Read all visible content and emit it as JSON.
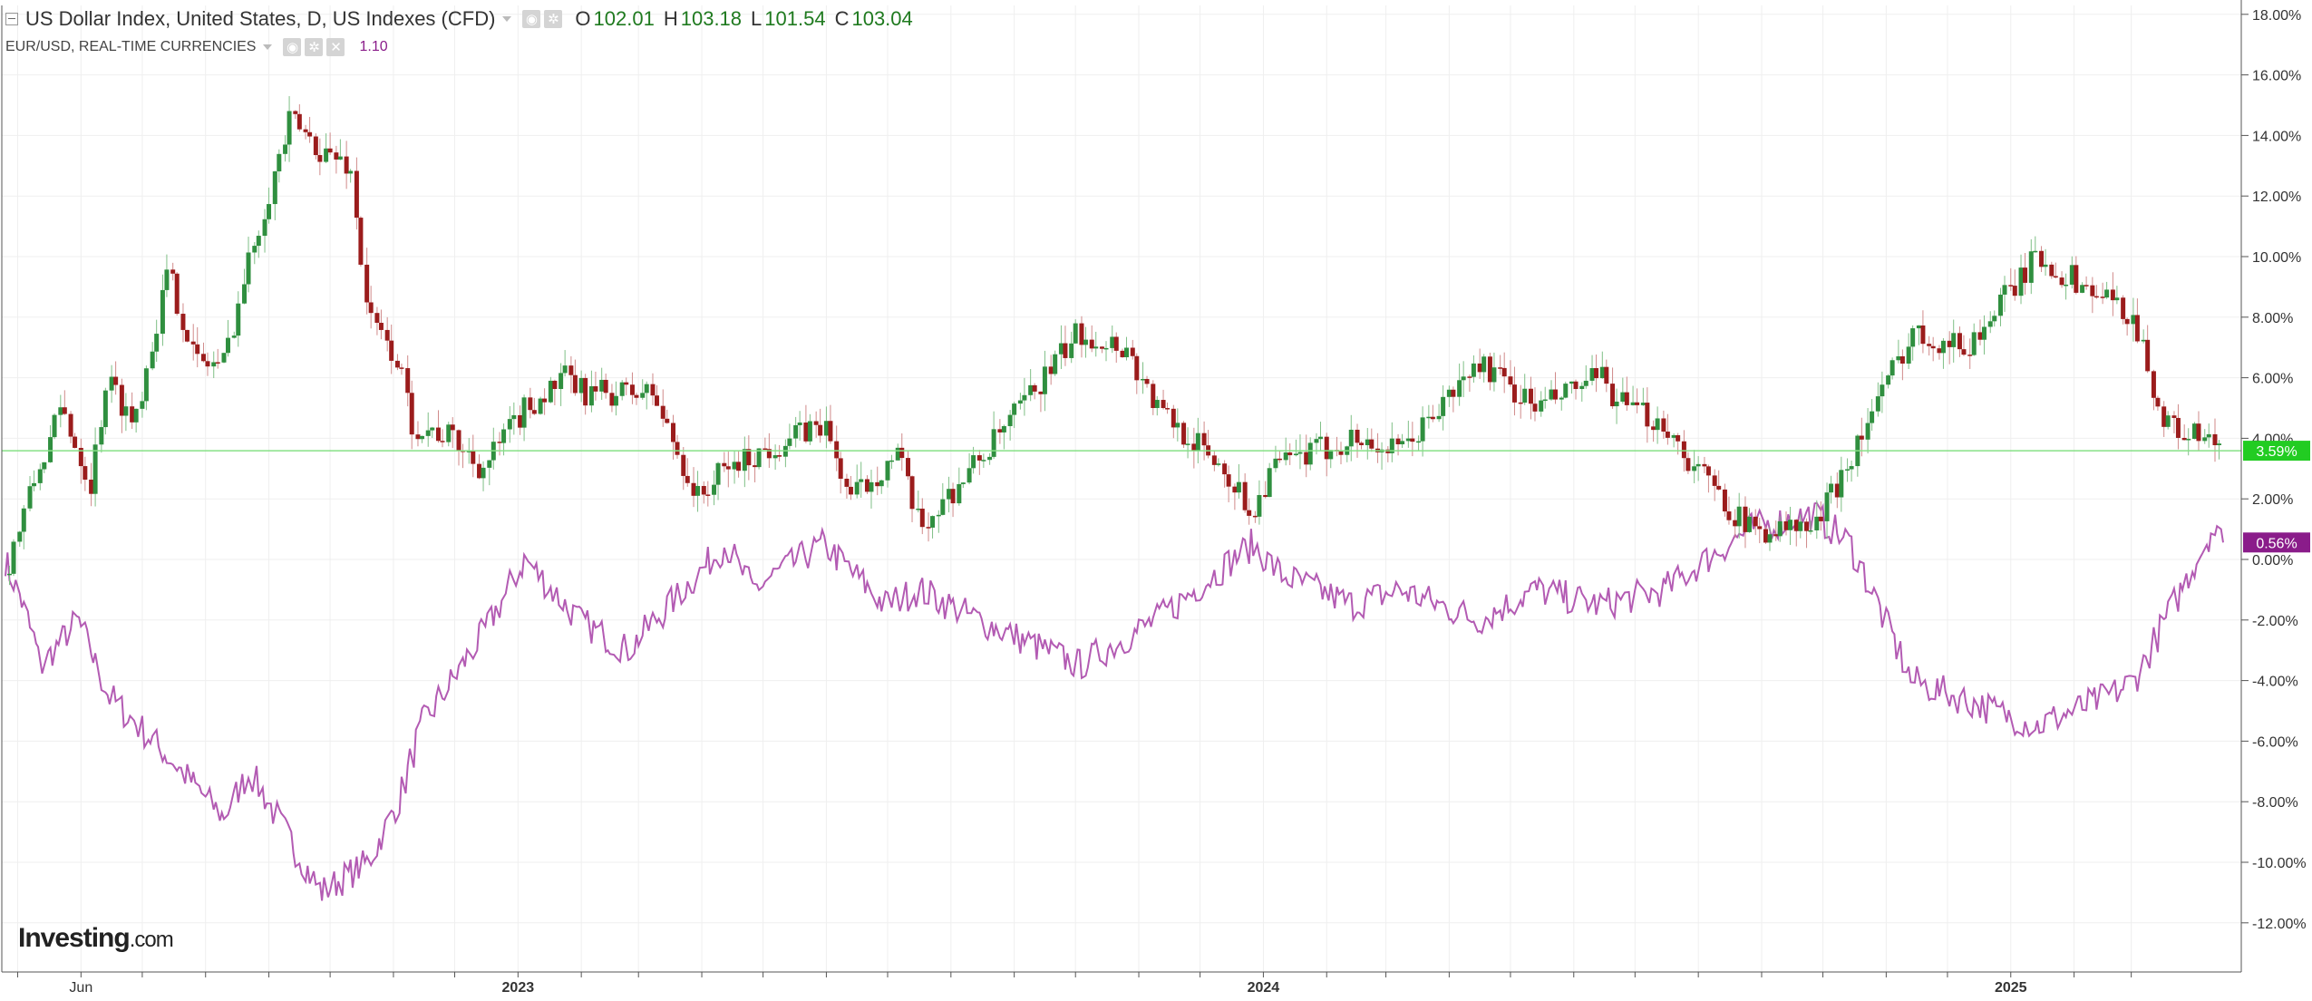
{
  "legend": {
    "main_title": "US Dollar Index, United States, D, US Indexes (CFD)",
    "open_key": "O",
    "open_value": "102.01",
    "high_key": "H",
    "high_value": "103.18",
    "low_key": "L",
    "low_value": "101.54",
    "close_key": "C",
    "close_value": "103.04",
    "compare_title": "EUR/USD, REAL-TIME CURRENCIES",
    "compare_value": "1.10",
    "settings_icon": "gear-icon",
    "visibility_icon": "eye-icon",
    "remove_icon": "close-icon"
  },
  "watermark": {
    "text_bold": "Investing",
    "text_normal": ".com"
  },
  "colors": {
    "up": "#2f8f3f",
    "down": "#9b1c1c",
    "line": "#b35bb3",
    "current_line": "#86e086",
    "badge_dxy": "#22cc22",
    "badge_eur": "#8a1c8a",
    "grid": "#efefef"
  },
  "chart_data": {
    "type": "line",
    "y_unit": "percent change",
    "ylim": [
      -14,
      18
    ],
    "y_ticks": [
      18,
      16,
      14,
      12,
      10,
      8,
      6,
      4,
      2,
      0,
      -2,
      -4,
      -6,
      -8,
      -10,
      -12
    ],
    "y_tick_labels": [
      "18.00%",
      "16.00%",
      "14.00%",
      "12.00%",
      "10.00%",
      "8.00%",
      "6.00%",
      "4.00%",
      "2.00%",
      "0.00%",
      "-2.00%",
      "-4.00%",
      "-6.00%",
      "-8.00%",
      "-10.00%",
      "-12.00%"
    ],
    "x_range": [
      "2022-04-25",
      "2025-04-15"
    ],
    "x_labels": [
      {
        "date": "2022-06-01",
        "label": "Jun",
        "bold": false
      },
      {
        "date": "2023-01-01",
        "label": "2023",
        "bold": true
      },
      {
        "date": "2024-01-01",
        "label": "2024",
        "bold": true
      },
      {
        "date": "2025-01-01",
        "label": "2025",
        "bold": true
      }
    ],
    "x_minor_ticks": [
      "2022-05-01",
      "2022-07-01",
      "2022-08-01",
      "2022-09-01",
      "2022-10-01",
      "2022-11-01",
      "2022-12-01",
      "2023-02-01",
      "2023-03-01",
      "2023-04-01",
      "2023-05-01",
      "2023-06-01",
      "2023-07-01",
      "2023-08-01",
      "2023-09-01",
      "2023-10-01",
      "2023-11-01",
      "2023-12-01",
      "2024-02-01",
      "2024-03-01",
      "2024-04-01",
      "2024-05-01",
      "2024-06-01",
      "2024-07-01",
      "2024-08-01",
      "2024-09-01",
      "2024-10-01",
      "2024-11-01",
      "2024-12-01",
      "2025-02-01",
      "2025-03-01"
    ],
    "current_values": [
      {
        "series": "US Dollar Index",
        "value": 3.59,
        "label": "3.59%"
      },
      {
        "series": "EUR/USD",
        "value": 0.56,
        "label": "0.56%"
      }
    ],
    "series": [
      {
        "name": "US Dollar Index",
        "style": "candlestick",
        "x": [
          "2022-04-25",
          "2022-05-09",
          "2022-05-23",
          "2022-06-06",
          "2022-06-14",
          "2022-06-27",
          "2022-07-14",
          "2022-07-28",
          "2022-08-10",
          "2022-08-25",
          "2022-09-12",
          "2022-09-27",
          "2022-10-11",
          "2022-10-20",
          "2022-11-04",
          "2022-11-10",
          "2022-11-30",
          "2022-12-15",
          "2023-01-05",
          "2023-01-25",
          "2023-02-02",
          "2023-03-08",
          "2023-03-30",
          "2023-04-13",
          "2023-05-31",
          "2023-06-13",
          "2023-07-06",
          "2023-07-17",
          "2023-08-24",
          "2023-10-03",
          "2023-10-26",
          "2023-11-10",
          "2023-12-13",
          "2023-12-27",
          "2024-01-05",
          "2024-02-14",
          "2024-03-08",
          "2024-04-16",
          "2024-05-14",
          "2024-06-14",
          "2024-06-26",
          "2024-07-16",
          "2024-07-25",
          "2024-08-26",
          "2024-09-27",
          "2024-11-14",
          "2024-12-11",
          "2025-01-14",
          "2025-02-19",
          "2025-03-03",
          "2025-03-17",
          "2025-04-10",
          "2025-04-15"
        ],
        "values": [
          -0.5,
          2.5,
          5.0,
          2.5,
          6.0,
          4.5,
          9.5,
          6.5,
          6.5,
          10.5,
          14.5,
          13.5,
          13.0,
          8.0,
          6.5,
          4.5,
          4.0,
          3.0,
          5.0,
          6.0,
          5.5,
          5.5,
          2.0,
          3.0,
          4.5,
          2.0,
          3.5,
          1.0,
          4.0,
          7.5,
          7.0,
          5.0,
          3.0,
          1.5,
          3.0,
          4.0,
          3.5,
          6.5,
          5.0,
          6.0,
          5.0,
          4.5,
          3.5,
          1.0,
          1.0,
          7.5,
          7.0,
          10.0,
          8.5,
          8.0,
          4.5,
          3.8,
          3.59
        ],
        "color": "#2f8f3f"
      },
      {
        "name": "EUR/USD",
        "style": "line",
        "x": [
          "2022-04-25",
          "2022-05-04",
          "2022-05-13",
          "2022-05-31",
          "2022-06-15",
          "2022-07-14",
          "2022-08-10",
          "2022-08-23",
          "2022-09-27",
          "2022-10-20",
          "2022-11-04",
          "2022-11-15",
          "2022-12-15",
          "2023-01-05",
          "2023-01-31",
          "2023-02-24",
          "2023-04-13",
          "2023-04-26",
          "2023-05-31",
          "2023-06-30",
          "2023-07-17",
          "2023-08-15",
          "2023-10-03",
          "2023-11-10",
          "2023-12-27",
          "2024-01-10",
          "2024-02-14",
          "2024-03-08",
          "2024-04-16",
          "2024-05-14",
          "2024-06-14",
          "2024-07-16",
          "2024-08-26",
          "2024-09-27",
          "2024-10-15",
          "2024-11-14",
          "2025-01-14",
          "2025-02-19",
          "2025-03-03",
          "2025-04-10",
          "2025-04-15"
        ],
        "values": [
          0.0,
          -1.5,
          -3.5,
          -2.0,
          -4.5,
          -6.5,
          -8.5,
          -7.0,
          -11.0,
          -10.0,
          -8.0,
          -5.5,
          -2.5,
          0.0,
          -2.0,
          -3.0,
          0.5,
          -1.0,
          0.5,
          -1.5,
          -1.0,
          -2.0,
          -3.5,
          -2.0,
          0.5,
          -0.5,
          -1.5,
          -1.0,
          -2.0,
          -1.0,
          -1.5,
          -1.0,
          1.0,
          1.5,
          0.5,
          -4.0,
          -5.5,
          -4.5,
          -4.0,
          1.0,
          0.56
        ],
        "color": "#b35bb3"
      }
    ]
  }
}
